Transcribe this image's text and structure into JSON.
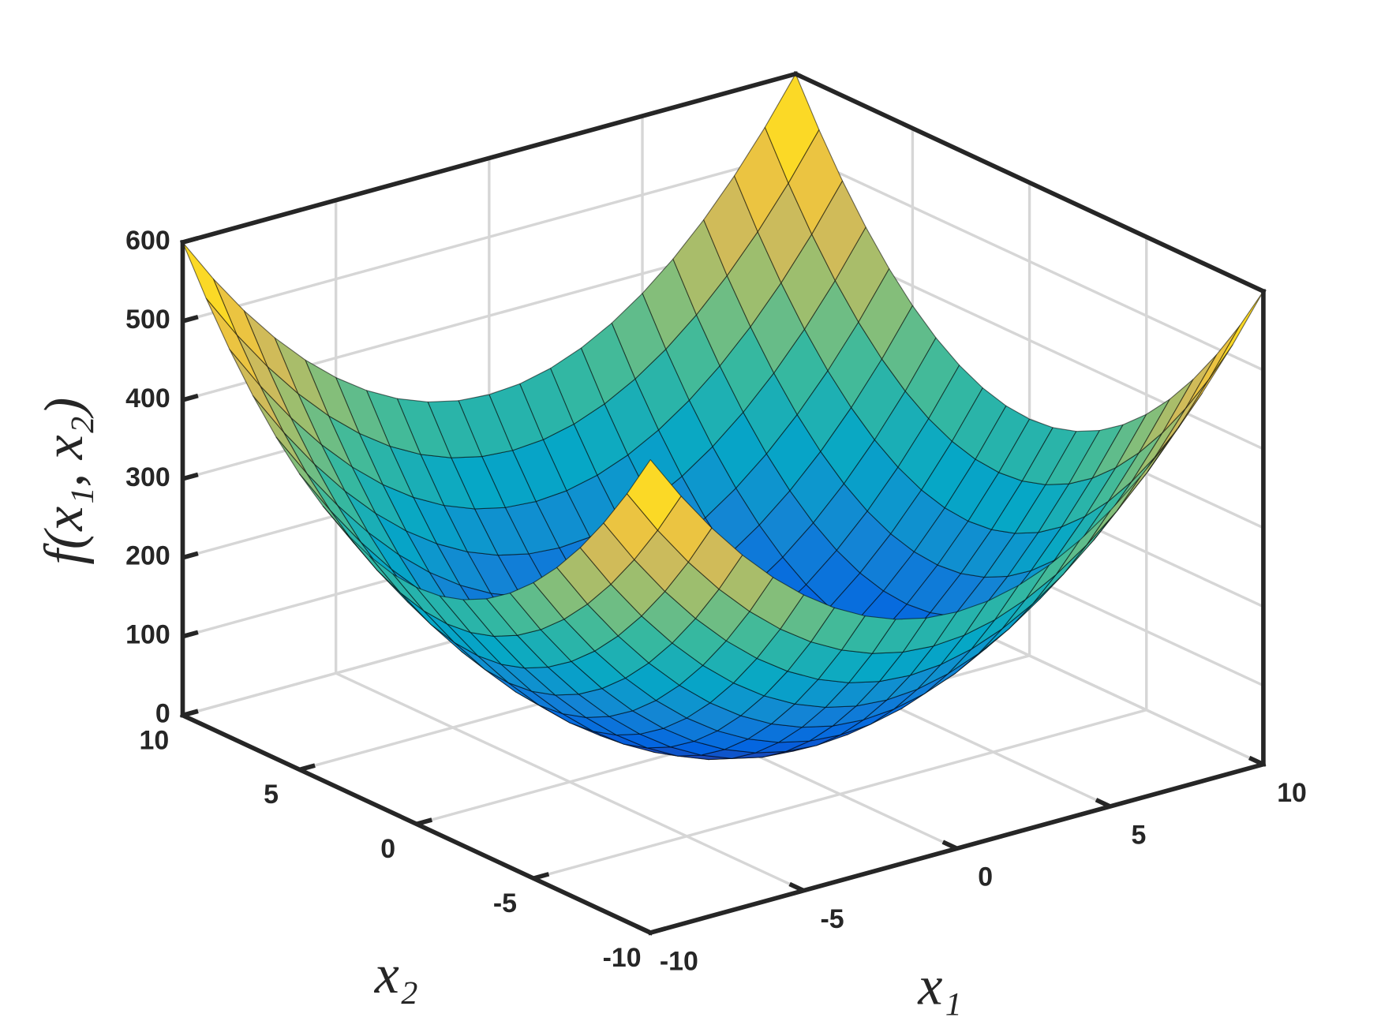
{
  "chart_data": {
    "type": "surface",
    "xlabel": "x₁",
    "ylabel": "x₂",
    "zlabel": "f(x₁, x₂)",
    "x1": [
      -10,
      -9,
      -8,
      -7,
      -6,
      -5,
      -4,
      -3,
      -2,
      -1,
      0,
      1,
      2,
      3,
      4,
      5,
      6,
      7,
      8,
      9,
      10
    ],
    "x2": [
      -10,
      -9,
      -8,
      -7,
      -6,
      -5,
      -4,
      -3,
      -2,
      -1,
      0,
      1,
      2,
      3,
      4,
      5,
      6,
      7,
      8,
      9,
      10
    ],
    "z": [
      [
        600,
        543,
        492,
        447,
        408,
        375,
        348,
        327,
        312,
        303,
        300,
        303,
        312,
        327,
        348,
        375,
        408,
        447,
        492,
        543,
        600
      ],
      [
        543,
        486,
        435,
        390,
        351,
        318,
        291,
        270,
        255,
        246,
        243,
        246,
        255,
        270,
        291,
        318,
        351,
        390,
        435,
        486,
        543
      ],
      [
        492,
        435,
        384,
        339,
        300,
        267,
        240,
        219,
        204,
        195,
        192,
        195,
        204,
        219,
        240,
        267,
        300,
        339,
        384,
        435,
        492
      ],
      [
        447,
        390,
        339,
        294,
        255,
        222,
        195,
        174,
        159,
        150,
        147,
        150,
        159,
        174,
        195,
        222,
        255,
        294,
        339,
        390,
        447
      ],
      [
        408,
        351,
        300,
        255,
        216,
        183,
        156,
        135,
        120,
        111,
        108,
        111,
        120,
        135,
        156,
        183,
        216,
        255,
        300,
        351,
        408
      ],
      [
        375,
        318,
        267,
        222,
        183,
        150,
        123,
        102,
        87,
        78,
        75,
        78,
        87,
        102,
        123,
        150,
        183,
        222,
        267,
        318,
        375
      ],
      [
        348,
        291,
        240,
        195,
        156,
        123,
        96,
        75,
        60,
        51,
        48,
        51,
        60,
        75,
        96,
        123,
        156,
        195,
        240,
        291,
        348
      ],
      [
        327,
        270,
        219,
        174,
        135,
        102,
        75,
        54,
        39,
        30,
        27,
        30,
        39,
        54,
        75,
        102,
        135,
        174,
        219,
        270,
        327
      ],
      [
        312,
        255,
        204,
        159,
        120,
        87,
        60,
        39,
        24,
        15,
        12,
        15,
        24,
        39,
        60,
        87,
        120,
        159,
        204,
        255,
        312
      ],
      [
        303,
        246,
        195,
        150,
        111,
        78,
        51,
        30,
        15,
        6,
        3,
        6,
        15,
        30,
        51,
        78,
        111,
        150,
        195,
        246,
        303
      ],
      [
        300,
        243,
        192,
        147,
        108,
        75,
        48,
        27,
        12,
        3,
        0,
        3,
        12,
        27,
        48,
        75,
        108,
        147,
        192,
        243,
        300
      ],
      [
        303,
        246,
        195,
        150,
        111,
        78,
        51,
        30,
        15,
        6,
        3,
        6,
        15,
        30,
        51,
        78,
        111,
        150,
        195,
        246,
        303
      ],
      [
        312,
        255,
        204,
        159,
        120,
        87,
        60,
        39,
        24,
        15,
        12,
        15,
        24,
        39,
        60,
        87,
        120,
        159,
        204,
        255,
        312
      ],
      [
        327,
        270,
        219,
        174,
        135,
        102,
        75,
        54,
        39,
        30,
        27,
        30,
        39,
        54,
        75,
        102,
        135,
        174,
        219,
        270,
        327
      ],
      [
        348,
        291,
        240,
        195,
        156,
        123,
        96,
        75,
        60,
        51,
        48,
        51,
        60,
        75,
        96,
        123,
        156,
        195,
        240,
        291,
        348
      ],
      [
        375,
        318,
        267,
        222,
        183,
        150,
        123,
        102,
        87,
        78,
        75,
        78,
        87,
        102,
        123,
        150,
        183,
        222,
        267,
        318,
        375
      ],
      [
        408,
        351,
        300,
        255,
        216,
        183,
        156,
        135,
        120,
        111,
        108,
        111,
        120,
        135,
        156,
        183,
        216,
        255,
        300,
        351,
        408
      ],
      [
        447,
        390,
        339,
        294,
        255,
        222,
        195,
        174,
        159,
        150,
        147,
        150,
        159,
        174,
        195,
        222,
        255,
        294,
        339,
        390,
        447
      ],
      [
        492,
        435,
        384,
        339,
        300,
        267,
        240,
        219,
        204,
        195,
        192,
        195,
        204,
        219,
        240,
        267,
        300,
        339,
        384,
        435,
        492
      ],
      [
        543,
        486,
        435,
        390,
        351,
        318,
        291,
        270,
        255,
        246,
        243,
        246,
        255,
        270,
        291,
        318,
        351,
        390,
        435,
        486,
        543
      ],
      [
        600,
        543,
        492,
        447,
        408,
        375,
        348,
        327,
        312,
        303,
        300,
        303,
        312,
        327,
        348,
        375,
        408,
        447,
        492,
        543,
        600
      ]
    ],
    "xlim": [
      -10,
      10
    ],
    "ylim": [
      -10,
      10
    ],
    "zlim": [
      0,
      600
    ],
    "xticks": [
      -10,
      -5,
      0,
      5,
      10
    ],
    "yticks": [
      -10,
      -5,
      0,
      5,
      10
    ],
    "zticks": [
      0,
      100,
      200,
      300,
      400,
      500,
      600
    ],
    "grid": true,
    "colormap": [
      "#352a87",
      "#0363e1",
      "#1485d4",
      "#06a7c6",
      "#38b99e",
      "#92bf73",
      "#d9ba56",
      "#fcce2e",
      "#f9fb0e"
    ]
  }
}
